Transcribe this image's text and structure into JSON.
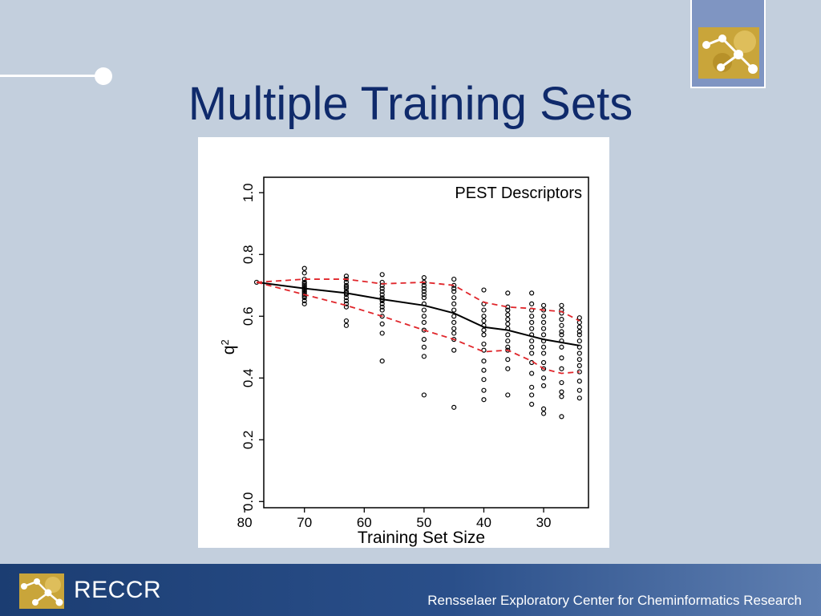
{
  "slide": {
    "title": "Multiple Training Sets"
  },
  "footer": {
    "brand": "RECCR",
    "org": "Rensselaer Exploratory Center for Cheminformatics Research"
  },
  "icons": {
    "header_logo": "molecule-logo-icon",
    "footer_logo": "molecule-logo-icon"
  },
  "colors": {
    "title": "#0f2a6b",
    "background": "#c3cfdd",
    "mean_line": "#000000",
    "bound_line": "#e0262b",
    "logo_gold": "#c9a53a"
  },
  "chart_data": {
    "type": "scatter",
    "annotation": "PEST Descriptors",
    "xlabel": "Training Set Size",
    "ylabel": "q2",
    "xlim": [
      76.8,
      22.5
    ],
    "ylim": [
      -0.02,
      1.05
    ],
    "x_ticks": [
      80,
      70,
      60,
      50,
      40,
      30
    ],
    "y_ticks": [
      0.0,
      0.2,
      0.4,
      0.6,
      0.8,
      1.0
    ],
    "y_tick_labels": [
      "0.0",
      "0.2",
      "0.4",
      "0.6",
      "0.8",
      "1.0"
    ],
    "grid": false,
    "points": [
      {
        "x": 78,
        "y": [
          0.71
        ]
      },
      {
        "x": 70,
        "y": [
          0.755,
          0.74,
          0.72,
          0.71,
          0.705,
          0.7,
          0.695,
          0.69,
          0.685,
          0.68,
          0.675,
          0.67,
          0.665,
          0.66,
          0.65,
          0.64
        ]
      },
      {
        "x": 63,
        "y": [
          0.73,
          0.72,
          0.71,
          0.7,
          0.695,
          0.69,
          0.68,
          0.675,
          0.67,
          0.66,
          0.65,
          0.64,
          0.63,
          0.585,
          0.57
        ]
      },
      {
        "x": 57,
        "y": [
          0.735,
          0.71,
          0.7,
          0.69,
          0.68,
          0.67,
          0.66,
          0.655,
          0.65,
          0.64,
          0.63,
          0.62,
          0.6,
          0.575,
          0.545,
          0.455
        ]
      },
      {
        "x": 50,
        "y": [
          0.725,
          0.71,
          0.7,
          0.69,
          0.68,
          0.67,
          0.66,
          0.64,
          0.62,
          0.6,
          0.58,
          0.555,
          0.525,
          0.5,
          0.47,
          0.345
        ]
      },
      {
        "x": 45,
        "y": [
          0.72,
          0.7,
          0.69,
          0.68,
          0.66,
          0.64,
          0.62,
          0.6,
          0.58,
          0.56,
          0.545,
          0.525,
          0.49,
          0.305
        ]
      },
      {
        "x": 40,
        "y": [
          0.685,
          0.64,
          0.62,
          0.6,
          0.585,
          0.57,
          0.555,
          0.54,
          0.51,
          0.49,
          0.455,
          0.425,
          0.395,
          0.36,
          0.33
        ]
      },
      {
        "x": 36,
        "y": [
          0.675,
          0.63,
          0.62,
          0.605,
          0.59,
          0.575,
          0.56,
          0.54,
          0.52,
          0.5,
          0.49,
          0.46,
          0.43,
          0.345
        ]
      },
      {
        "x": 32,
        "y": [
          0.675,
          0.64,
          0.62,
          0.6,
          0.58,
          0.56,
          0.54,
          0.52,
          0.5,
          0.48,
          0.45,
          0.415,
          0.37,
          0.345,
          0.315
        ]
      },
      {
        "x": 30,
        "y": [
          0.635,
          0.62,
          0.6,
          0.58,
          0.56,
          0.54,
          0.52,
          0.5,
          0.48,
          0.45,
          0.43,
          0.4,
          0.375,
          0.3,
          0.285
        ]
      },
      {
        "x": 27,
        "y": [
          0.635,
          0.62,
          0.61,
          0.59,
          0.57,
          0.55,
          0.54,
          0.52,
          0.5,
          0.465,
          0.43,
          0.385,
          0.355,
          0.34,
          0.275
        ]
      },
      {
        "x": 24,
        "y": [
          0.595,
          0.58,
          0.565,
          0.55,
          0.54,
          0.52,
          0.5,
          0.48,
          0.46,
          0.44,
          0.42,
          0.39,
          0.36,
          0.335
        ]
      }
    ],
    "series": [
      {
        "style": "solid",
        "color": "#000000",
        "x": [
          78,
          70,
          63,
          57,
          50,
          45,
          40,
          36,
          32,
          30,
          27,
          24
        ],
        "y": [
          0.71,
          0.69,
          0.675,
          0.655,
          0.635,
          0.61,
          0.565,
          0.555,
          0.535,
          0.525,
          0.515,
          0.505
        ]
      },
      {
        "style": "dashed",
        "color": "#e0262b",
        "x": [
          78,
          70,
          63,
          57,
          50,
          45,
          40,
          36,
          32,
          30,
          27,
          24
        ],
        "y": [
          0.71,
          0.72,
          0.72,
          0.705,
          0.71,
          0.7,
          0.645,
          0.63,
          0.625,
          0.62,
          0.615,
          0.585
        ]
      },
      {
        "style": "dashed",
        "color": "#e0262b",
        "x": [
          78,
          70,
          63,
          57,
          50,
          45,
          40,
          36,
          32,
          30,
          27,
          24
        ],
        "y": [
          0.71,
          0.67,
          0.635,
          0.6,
          0.555,
          0.525,
          0.485,
          0.49,
          0.455,
          0.43,
          0.415,
          0.42
        ]
      }
    ]
  }
}
